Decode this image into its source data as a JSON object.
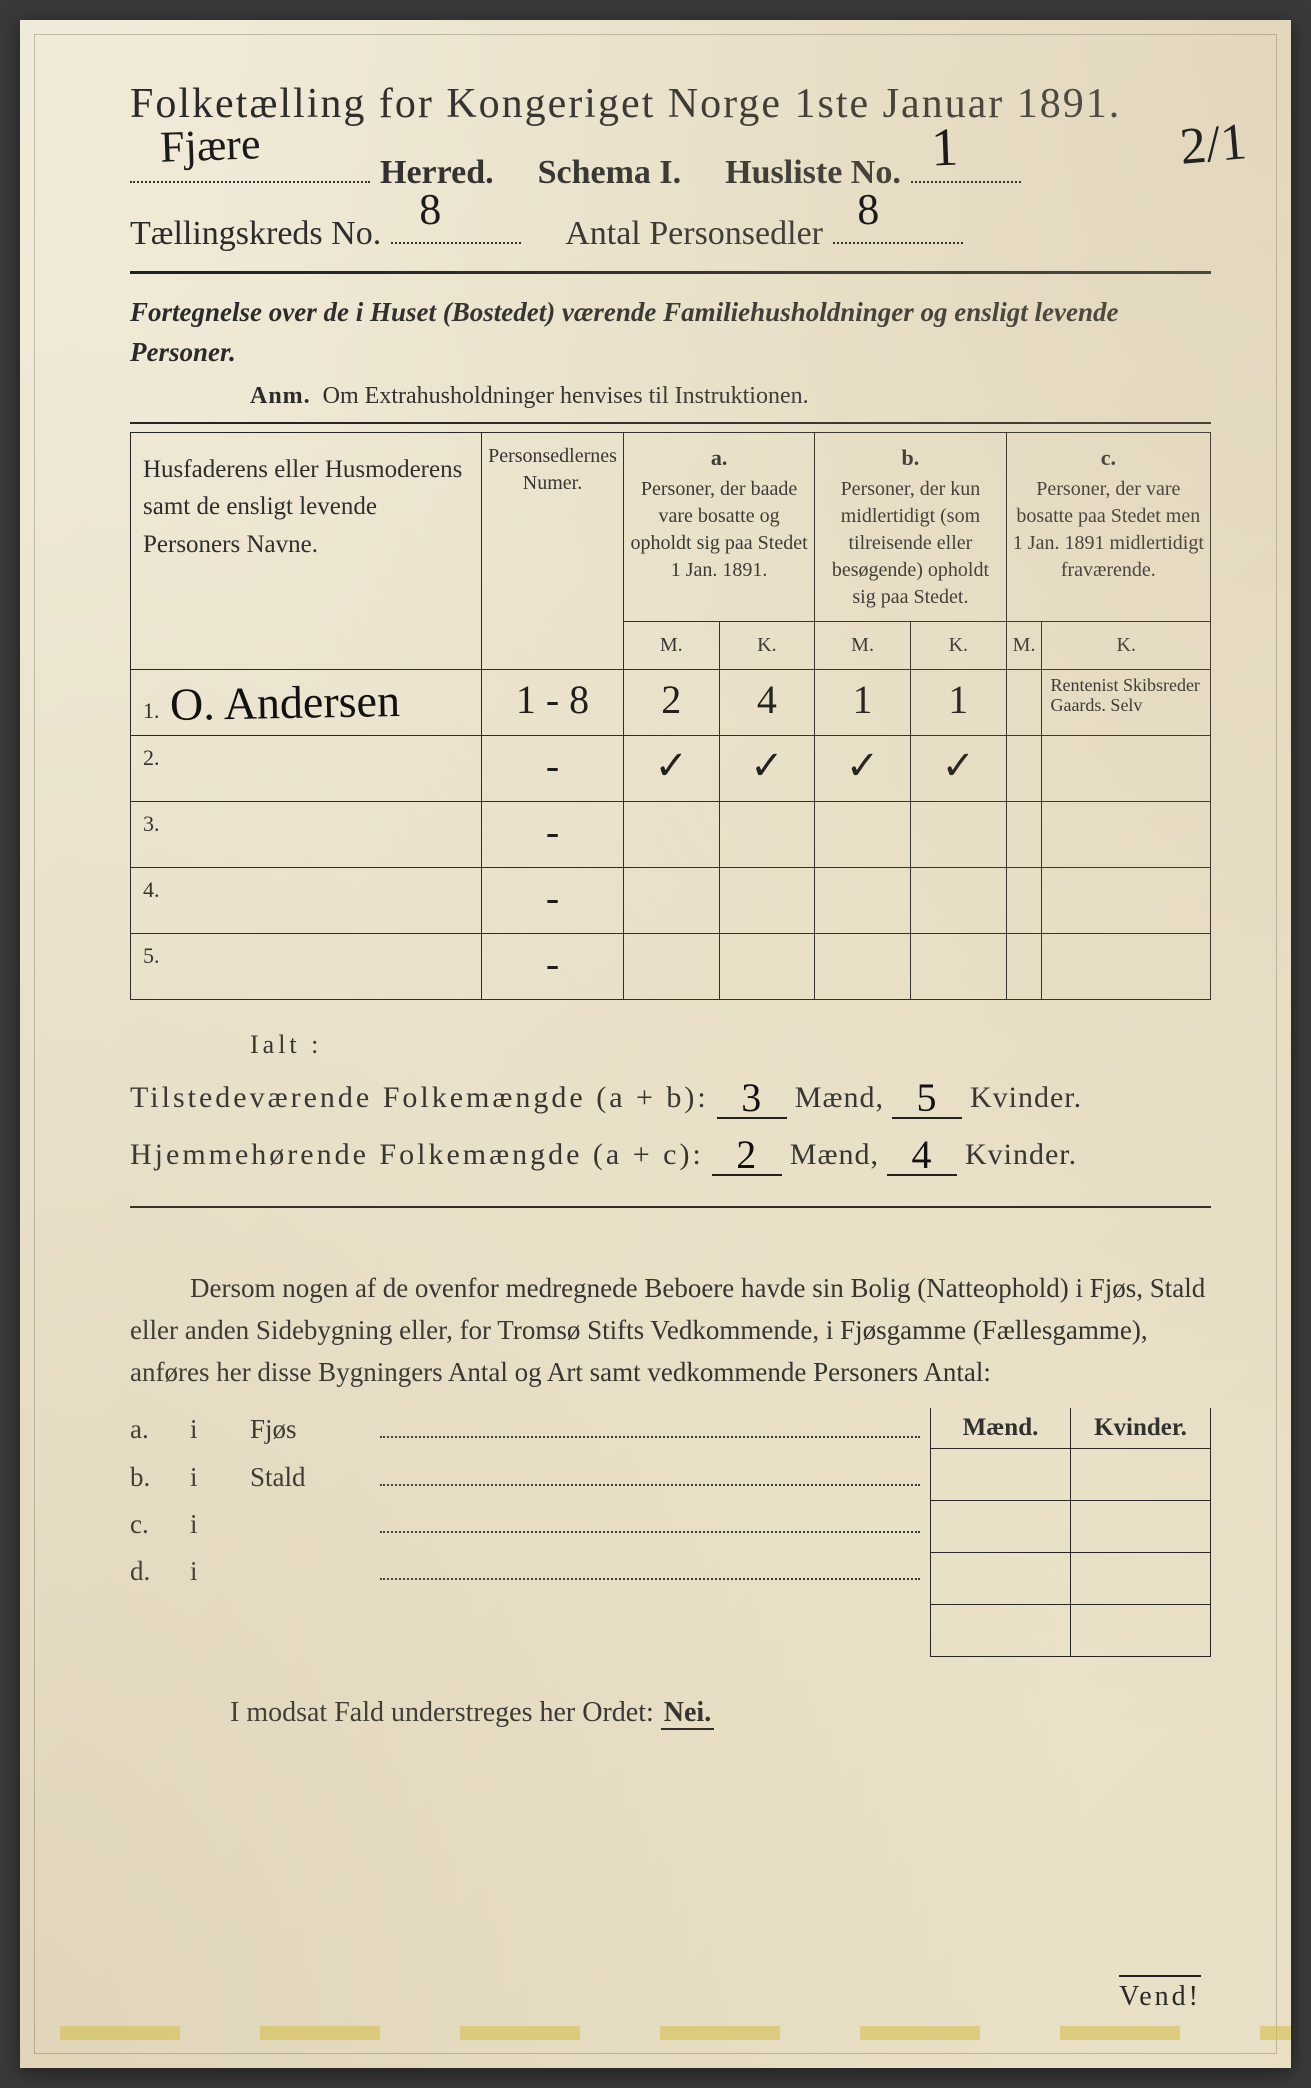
{
  "title": "Folketælling for Kongeriget Norge 1ste Januar 1891.",
  "header": {
    "herred_label": "Herred.",
    "herred_value": "Fjære",
    "schema_label": "Schema I.",
    "husliste_label": "Husliste No.",
    "husliste_value": "1",
    "side_annotation": "2/1",
    "kreds_label": "Tællingskreds No.",
    "kreds_value": "8",
    "antal_label": "Antal Personsedler",
    "antal_value": "8"
  },
  "subtitle": "Fortegnelse over de i Huset (Bostedet) værende Familiehusholdninger og ensligt levende Personer.",
  "anm": {
    "label": "Anm.",
    "text": "Om Extrahusholdninger henvises til Instruktionen."
  },
  "table": {
    "col1": "Husfaderens eller Husmoderens samt de ensligt levende Personers Navne.",
    "col2": "Personsedlernes Numer.",
    "col_a_label": "a.",
    "col_a": "Personer, der baade vare bosatte og opholdt sig paa Stedet 1 Jan. 1891.",
    "col_b_label": "b.",
    "col_b": "Personer, der kun midlertidigt (som tilreisende eller besøgende) opholdt sig paa Stedet.",
    "col_c_label": "c.",
    "col_c": "Personer, der vare bosatte paa Stedet men 1 Jan. 1891 midlertidigt fraværende.",
    "M": "M.",
    "K": "K.",
    "rows": [
      {
        "n": "1.",
        "name": "O. Andersen",
        "numer": "1 - 8",
        "aM": "2",
        "aK": "4",
        "bM": "1",
        "bK": "1",
        "cM": "",
        "cK": "",
        "note": "Rentenist Skibsreder Gaards. Selv"
      },
      {
        "n": "2.",
        "name": "",
        "numer": "-",
        "aM": "✓",
        "aK": "✓",
        "bM": "✓",
        "bK": "✓",
        "cM": "",
        "cK": "",
        "note": ""
      },
      {
        "n": "3.",
        "name": "",
        "numer": "-",
        "aM": "",
        "aK": "",
        "bM": "",
        "bK": "",
        "cM": "",
        "cK": "",
        "note": ""
      },
      {
        "n": "4.",
        "name": "",
        "numer": "-",
        "aM": "",
        "aK": "",
        "bM": "",
        "bK": "",
        "cM": "",
        "cK": "",
        "note": ""
      },
      {
        "n": "5.",
        "name": "",
        "numer": "-",
        "aM": "",
        "aK": "",
        "bM": "",
        "bK": "",
        "cM": "",
        "cK": "",
        "note": ""
      }
    ]
  },
  "totals": {
    "ialt": "Ialt :",
    "line1_label": "Tilstedeværende Folkemængde (a + b):",
    "line1_m": "3",
    "line1_k": "5",
    "line2_label": "Hjemmehørende Folkemængde (a + c):",
    "line2_m": "2",
    "line2_k": "4",
    "maend": "Mænd,",
    "kvinder": "Kvinder."
  },
  "paragraph": "Dersom nogen af de ovenfor medregnede Beboere havde sin Bolig (Natteophold) i Fjøs, Stald eller anden Sidebygning eller, for Tromsø Stifts Vedkommende, i Fjøsgamme (Fællesgamme), anføres her disse Bygningers Antal og Art samt vedkommende Personers Antal:",
  "outbuild": {
    "header_m": "Mænd.",
    "header_k": "Kvinder.",
    "rows": [
      {
        "key": "a.",
        "i": "i",
        "name": "Fjøs"
      },
      {
        "key": "b.",
        "i": "i",
        "name": "Stald"
      },
      {
        "key": "c.",
        "i": "i",
        "name": ""
      },
      {
        "key": "d.",
        "i": "i",
        "name": ""
      }
    ]
  },
  "nei_line": "I modsat Fald understreges her Ordet:",
  "nei": "Nei.",
  "vend": "Vend!",
  "colors": {
    "paper_bg": "#ede5cf",
    "ink": "#222222",
    "handwriting": "#111111"
  }
}
